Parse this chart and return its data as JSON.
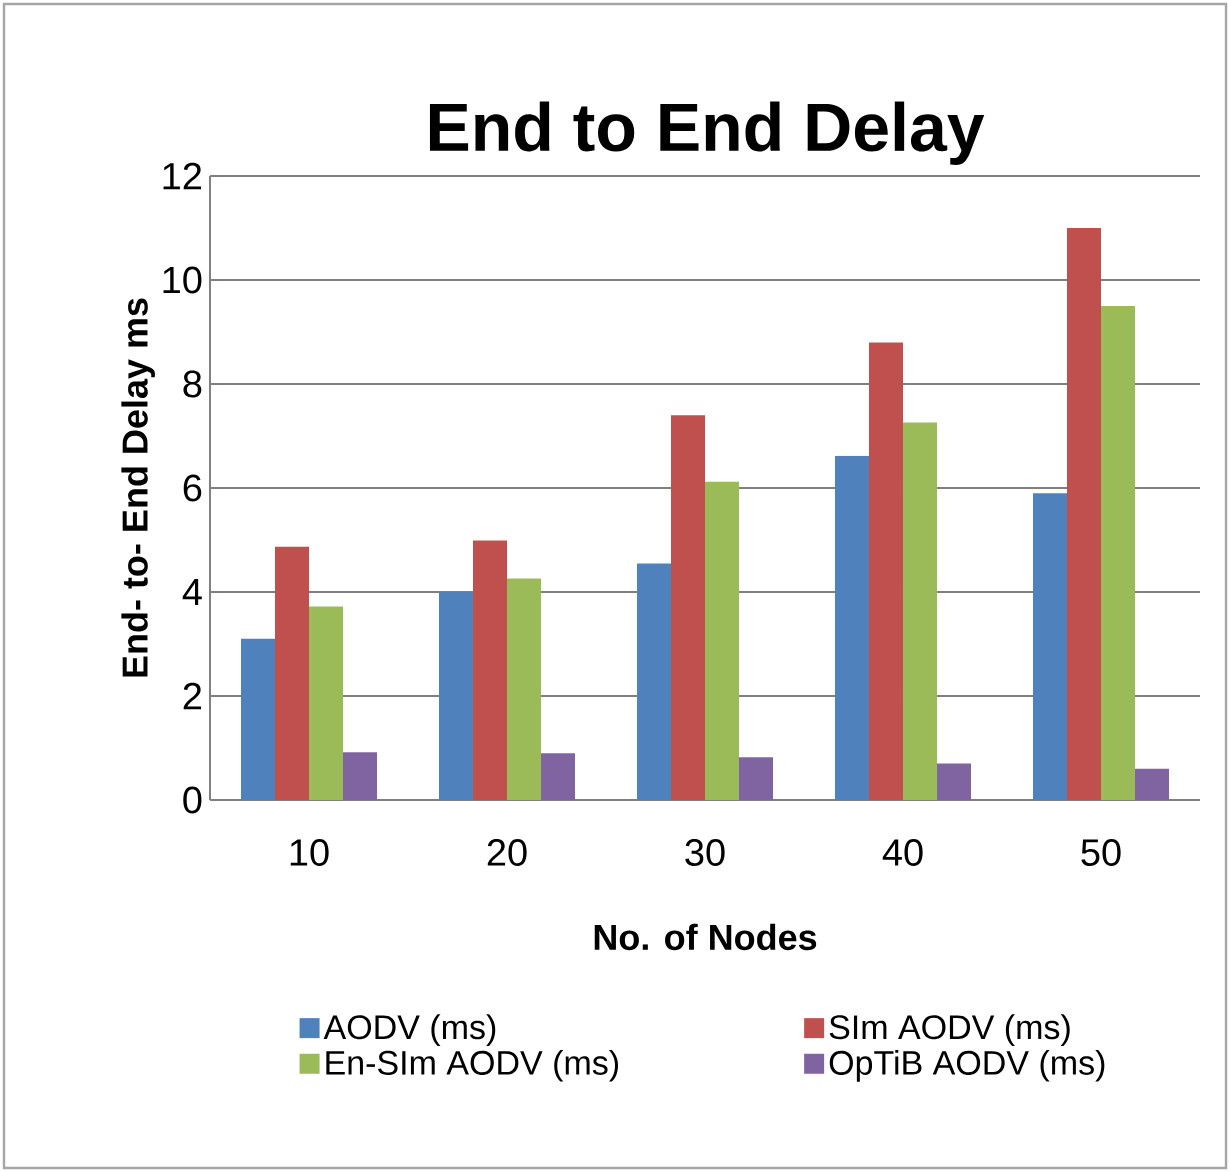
{
  "chart_data": {
    "type": "bar",
    "title": "End to End Delay",
    "xlabel": "No. of Nodes",
    "ylabel": "End- to- End Delay ms",
    "categories": [
      "10",
      "20",
      "30",
      "40",
      "50"
    ],
    "series": [
      {
        "name": "AODV  (ms)",
        "color": "#4f81bd",
        "values": [
          3.1,
          4.0,
          4.55,
          6.62,
          5.9
        ]
      },
      {
        "name": "SIm AODV (ms)",
        "color": "#c0504d",
        "values": [
          4.87,
          4.99,
          7.4,
          8.8,
          11.0
        ]
      },
      {
        "name": "En-SIm AODV (ms)",
        "color": "#9bbb59",
        "values": [
          3.72,
          4.26,
          6.12,
          7.26,
          9.5
        ]
      },
      {
        "name": "OpTiB AODV (ms)",
        "color": "#8064a2",
        "values": [
          0.92,
          0.9,
          0.82,
          0.7,
          0.6
        ]
      }
    ],
    "ylim": [
      0,
      12
    ],
    "yticks": [
      0,
      2,
      4,
      6,
      8,
      10,
      12
    ],
    "grid": "y",
    "legend": "bottom"
  }
}
